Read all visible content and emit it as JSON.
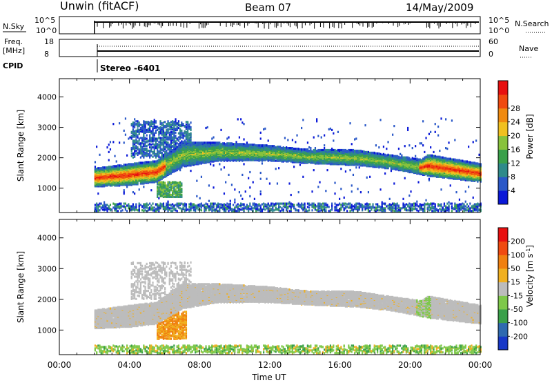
{
  "header": {
    "station": "Unwin (fitACF)",
    "beam": "Beam 07",
    "date": "14/May/2009"
  },
  "top_panels": {
    "nsky": {
      "label": "N.Sky",
      "ticks": [
        "10^5",
        "10^0"
      ],
      "right_label": "N.Search",
      "right_ticks": [
        "10^5",
        "10^0"
      ]
    },
    "freq": {
      "label_line1": "Freq.",
      "label_line2": "[MHz]",
      "ticks": [
        "18",
        "8"
      ],
      "right_label": "Nave",
      "right_ticks": [
        "60",
        "0"
      ]
    },
    "cpid": {
      "label": "CPID",
      "value": "Stereo -6401"
    }
  },
  "chart_data": [
    {
      "type": "heatmap",
      "parameter": "Power",
      "ylabel": "Slant Range [km]",
      "yticks": [
        "1000",
        "2000",
        "3000",
        "4000"
      ],
      "ylim": [
        200,
        4600
      ],
      "xlim_hours": [
        0,
        24
      ],
      "data_start_hour": 2,
      "colorbar": {
        "label": "Power [dB]",
        "range": [
          0,
          32
        ],
        "ticks": [
          "4",
          "8",
          "12",
          "16",
          "20",
          "24",
          "28"
        ],
        "colors": [
          "#0a18d8",
          "#2a58c8",
          "#2f8a8a",
          "#3aa04a",
          "#88c23c",
          "#f0c020",
          "#f08a10",
          "#f04a10",
          "#e81010"
        ]
      },
      "echo_band_km": [
        {
          "hour": 2.0,
          "center": 1350,
          "width": 600
        },
        {
          "hour": 4.0,
          "center": 1450,
          "width": 700
        },
        {
          "hour": 5.5,
          "center": 1550,
          "width": 700
        },
        {
          "hour": 7.0,
          "center": 2100,
          "width": 800
        },
        {
          "hour": 9.0,
          "center": 2200,
          "width": 600
        },
        {
          "hour": 12.0,
          "center": 2150,
          "width": 500
        },
        {
          "hour": 14.0,
          "center": 2050,
          "width": 450
        },
        {
          "hour": 17.0,
          "center": 2000,
          "width": 500
        },
        {
          "hour": 19.0,
          "center": 1850,
          "width": 450
        },
        {
          "hour": 20.6,
          "center": 1700,
          "width": 500
        },
        {
          "hour": 21.0,
          "center": 1750,
          "width": 700
        },
        {
          "hour": 24.0,
          "center": 1500,
          "width": 600
        }
      ]
    },
    {
      "type": "heatmap",
      "parameter": "Velocity",
      "ylabel": "Slant Range [km]",
      "yticks": [
        "1000",
        "2000",
        "3000",
        "4000"
      ],
      "ylim": [
        200,
        4600
      ],
      "xlim_hours": [
        0,
        24
      ],
      "data_start_hour": 2,
      "colorbar": {
        "label": "Velocity [m s^-1]",
        "ticks": [
          "200",
          "100",
          "50",
          "15",
          "-15",
          "-50",
          "-100",
          "-200"
        ],
        "colors": [
          "#1838c8",
          "#2f6ab0",
          "#3aa04a",
          "#7ec84a",
          "#bcbcbc",
          "#f0b020",
          "#f08010",
          "#f04a10",
          "#e81010"
        ]
      }
    }
  ],
  "xaxis": {
    "label": "Time UT",
    "ticks": [
      "00:00",
      "04:00",
      "08:00",
      "12:00",
      "16:00",
      "20:00",
      "00:00"
    ]
  }
}
